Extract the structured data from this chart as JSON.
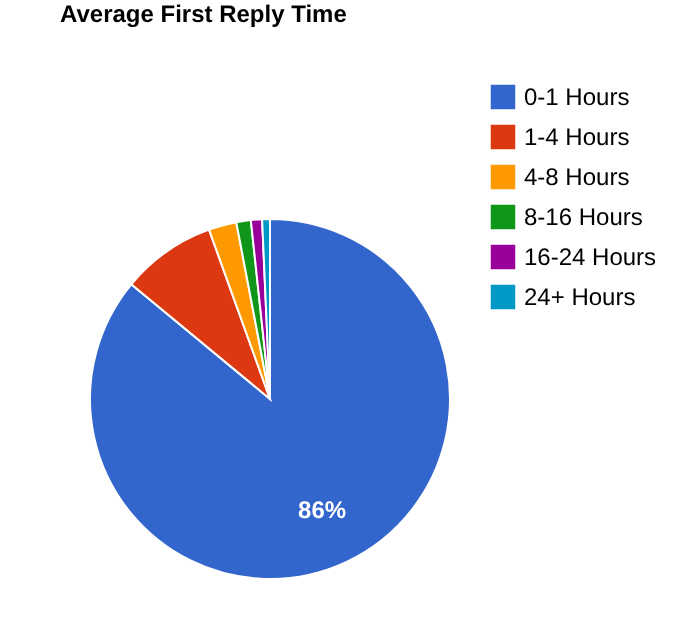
{
  "chart_data": {
    "type": "pie",
    "title": "Average First Reply Time",
    "categories": [
      "0-1 Hours",
      "1-4 Hours",
      "4-8 Hours",
      "8-16 Hours",
      "16-24 Hours",
      "24+ Hours"
    ],
    "values": [
      86,
      8.5,
      2.5,
      1.3,
      1,
      0.7
    ],
    "colors": [
      "#3366cc",
      "#dc3912",
      "#ff9900",
      "#109618",
      "#990099",
      "#0099c6"
    ],
    "value_labels": [
      "86%",
      null,
      null,
      null,
      null,
      null
    ],
    "legend": "top right"
  }
}
